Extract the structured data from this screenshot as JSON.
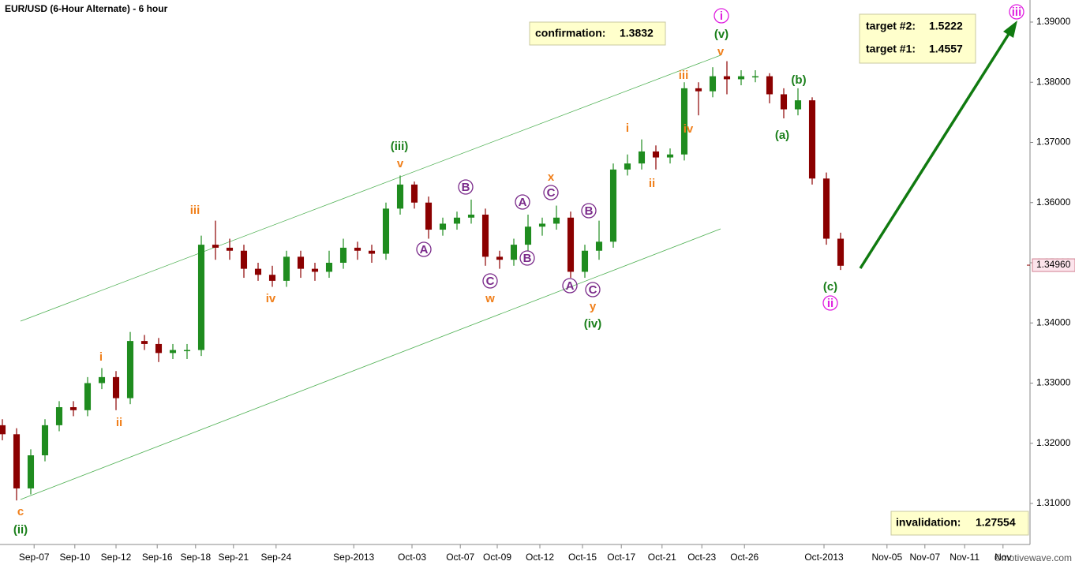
{
  "chart_data": {
    "type": "candlestick",
    "title": "EUR/USD (6-Hour Alternate) - 6 hour",
    "watermark": "©motivewave.com",
    "up_color": "#1f8c1f",
    "down_color": "#8b0000",
    "xlim": [
      -0.5,
      217
    ],
    "ylim": [
      1.30318,
      1.39367
    ],
    "yticks": [
      {
        "value": 1.39,
        "label": "1.39000"
      },
      {
        "value": 1.38,
        "label": "1.38000"
      },
      {
        "value": 1.37,
        "label": "1.37000"
      },
      {
        "value": 1.36,
        "label": "1.36000"
      },
      {
        "value": 1.35,
        "label": "1.35000"
      },
      {
        "value": 1.34,
        "label": "1.34000"
      },
      {
        "value": 1.33,
        "label": "1.33000"
      },
      {
        "value": 1.32,
        "label": "1.32000"
      },
      {
        "value": 1.31,
        "label": "1.31000"
      }
    ],
    "last_price": {
      "value": 1.3496,
      "label": "1.34960"
    },
    "xticks": [
      {
        "value": 6.7,
        "label": "Sep-07"
      },
      {
        "value": 15.3,
        "label": "Sep-10"
      },
      {
        "value": 24,
        "label": "Sep-12"
      },
      {
        "value": 32.7,
        "label": "Sep-16"
      },
      {
        "value": 40.8,
        "label": "Sep-18"
      },
      {
        "value": 48.8,
        "label": "Sep-21"
      },
      {
        "value": 57.8,
        "label": "Sep-24"
      },
      {
        "value": 74.2,
        "label": "Sep-2013"
      },
      {
        "value": 86.5,
        "label": "Oct-03"
      },
      {
        "value": 96.7,
        "label": "Oct-07"
      },
      {
        "value": 104.5,
        "label": "Oct-09"
      },
      {
        "value": 113.5,
        "label": "Oct-12"
      },
      {
        "value": 122.5,
        "label": "Oct-15"
      },
      {
        "value": 130.7,
        "label": "Oct-17"
      },
      {
        "value": 139.3,
        "label": "Oct-21"
      },
      {
        "value": 147.7,
        "label": "Oct-23"
      },
      {
        "value": 156.7,
        "label": "Oct-26"
      },
      {
        "value": 173.5,
        "label": "Oct-2013"
      },
      {
        "value": 186.8,
        "label": "Nov-05"
      },
      {
        "value": 194.8,
        "label": "Nov-07"
      },
      {
        "value": 203.2,
        "label": "Nov-11"
      },
      {
        "value": 211.3,
        "label": "Nov"
      }
    ],
    "x": [
      0,
      3,
      6,
      9,
      12,
      15,
      18,
      21,
      24,
      27,
      30,
      33,
      36,
      39,
      42,
      45,
      48,
      51,
      54,
      57,
      60,
      63,
      66,
      69,
      72,
      75,
      78,
      81,
      84,
      87,
      90,
      93,
      96,
      99,
      102,
      105,
      108,
      111,
      114,
      117,
      120,
      123,
      126,
      129,
      132,
      135,
      138,
      141,
      144,
      147,
      150,
      153,
      156,
      159,
      162,
      165,
      168,
      171,
      174,
      177
    ],
    "open": [
      1.323,
      1.3215,
      1.3125,
      1.318,
      1.323,
      1.326,
      1.3255,
      1.33,
      1.331,
      1.3275,
      1.337,
      1.3365,
      1.335,
      1.3355,
      1.3355,
      1.353,
      1.3525,
      1.352,
      1.349,
      1.348,
      1.347,
      1.351,
      1.349,
      1.3485,
      1.35,
      1.3525,
      1.352,
      1.3515,
      1.359,
      1.363,
      1.36,
      1.3555,
      1.3565,
      1.3575,
      1.358,
      1.351,
      1.3505,
      1.353,
      1.356,
      1.3565,
      1.3575,
      1.3485,
      1.352,
      1.3535,
      1.3655,
      1.3665,
      1.3685,
      1.3675,
      1.368,
      1.379,
      1.3785,
      1.381,
      1.3805,
      1.381,
      1.381,
      1.378,
      1.3755,
      1.377,
      1.364,
      1.354
    ],
    "high": [
      1.324,
      1.3225,
      1.319,
      1.324,
      1.327,
      1.327,
      1.331,
      1.3325,
      1.332,
      1.3385,
      1.338,
      1.3375,
      1.3365,
      1.3365,
      1.3545,
      1.357,
      1.354,
      1.353,
      1.35,
      1.3495,
      1.352,
      1.352,
      1.35,
      1.352,
      1.354,
      1.3535,
      1.353,
      1.36,
      1.3645,
      1.3635,
      1.361,
      1.3575,
      1.3585,
      1.3605,
      1.359,
      1.352,
      1.354,
      1.358,
      1.3575,
      1.3595,
      1.3585,
      1.353,
      1.357,
      1.3665,
      1.368,
      1.3705,
      1.3695,
      1.369,
      1.38,
      1.38,
      1.3825,
      1.3835,
      1.382,
      1.382,
      1.3815,
      1.379,
      1.379,
      1.3775,
      1.365,
      1.355
    ],
    "low": [
      1.3205,
      1.3105,
      1.3115,
      1.317,
      1.322,
      1.3245,
      1.3245,
      1.329,
      1.3255,
      1.3265,
      1.3355,
      1.3335,
      1.334,
      1.334,
      1.3345,
      1.3505,
      1.3505,
      1.3475,
      1.347,
      1.346,
      1.346,
      1.3475,
      1.347,
      1.3475,
      1.349,
      1.3505,
      1.35,
      1.3505,
      1.358,
      1.359,
      1.354,
      1.3545,
      1.3555,
      1.3565,
      1.3495,
      1.349,
      1.3495,
      1.352,
      1.3545,
      1.3555,
      1.3475,
      1.3475,
      1.3505,
      1.3525,
      1.3645,
      1.3655,
      1.3655,
      1.3665,
      1.367,
      1.3745,
      1.3775,
      1.378,
      1.3795,
      1.38,
      1.3765,
      1.374,
      1.3745,
      1.363,
      1.353,
      1.3488
    ],
    "close": [
      1.3215,
      1.3125,
      1.318,
      1.323,
      1.326,
      1.3255,
      1.33,
      1.331,
      1.3275,
      1.337,
      1.3365,
      1.335,
      1.3355,
      1.3355,
      1.353,
      1.3525,
      1.352,
      1.349,
      1.348,
      1.347,
      1.351,
      1.349,
      1.3485,
      1.35,
      1.3525,
      1.352,
      1.3515,
      1.359,
      1.363,
      1.36,
      1.3555,
      1.3565,
      1.3575,
      1.358,
      1.351,
      1.3505,
      1.353,
      1.356,
      1.3565,
      1.3575,
      1.3485,
      1.352,
      1.3535,
      1.3655,
      1.3665,
      1.3685,
      1.3675,
      1.368,
      1.379,
      1.3785,
      1.381,
      1.3805,
      1.381,
      1.381,
      1.378,
      1.3755,
      1.377,
      1.364,
      1.354,
      1.3495
    ],
    "wave_labels": [
      {
        "text": "c",
        "color": "#f07f1a"
      },
      {
        "text": "(ii)",
        "color": "#1a7f1a"
      },
      {
        "text": "i",
        "color": "#f07f1a"
      },
      {
        "text": "ii",
        "color": "#f07f1a"
      },
      {
        "text": "iii",
        "color": "#f07f1a"
      },
      {
        "text": "iv",
        "color": "#f07f1a"
      },
      {
        "text": "v",
        "color": "#f07f1a"
      },
      {
        "text": "(iii)",
        "color": "#1a7f1a"
      },
      {
        "text": "A",
        "color": "#7a2a8a",
        "circled": true
      },
      {
        "text": "B",
        "color": "#7a2a8a",
        "circled": true
      },
      {
        "text": "C",
        "color": "#7a2a8a",
        "circled": true
      },
      {
        "text": "w",
        "color": "#f07f1a"
      },
      {
        "text": "A",
        "color": "#7a2a8a",
        "circled": true
      },
      {
        "text": "B",
        "color": "#7a2a8a",
        "circled": true
      },
      {
        "text": "x",
        "color": "#f07f1a"
      },
      {
        "text": "C",
        "color": "#7a2a8a",
        "circled": true
      },
      {
        "text": "A",
        "color": "#7a2a8a",
        "circled": true
      },
      {
        "text": "B",
        "color": "#7a2a8a",
        "circled": true
      },
      {
        "text": "C",
        "color": "#7a2a8a",
        "circled": true
      },
      {
        "text": "y",
        "color": "#f07f1a"
      },
      {
        "text": "(iv)",
        "color": "#1a7f1a"
      },
      {
        "text": "i",
        "color": "#f07f1a"
      },
      {
        "text": "ii",
        "color": "#f07f1a"
      },
      {
        "text": "iii",
        "color": "#f07f1a"
      },
      {
        "text": "iv",
        "color": "#f07f1a"
      },
      {
        "text": "v",
        "color": "#f07f1a"
      },
      {
        "text": "(v)",
        "color": "#1a7f1a"
      },
      {
        "text": "i",
        "color": "#e020e0",
        "circled": true
      },
      {
        "text": "(a)",
        "color": "#1a7f1a"
      },
      {
        "text": "(b)",
        "color": "#1a7f1a"
      },
      {
        "text": "(c)",
        "color": "#1a7f1a"
      },
      {
        "text": "ii",
        "color": "#e020e0",
        "circled": true
      },
      {
        "text": "iii",
        "color": "#e020e0",
        "circled": true
      }
    ],
    "notes": {
      "confirmation": {
        "label": "confirmation:",
        "value": "1.3832"
      },
      "target_2": {
        "label": "target #2:",
        "value": "1.5222"
      },
      "target_1": {
        "label": "target #1:",
        "value": "1.4557"
      },
      "invalidation": {
        "label": "invalidation:",
        "value": "1.27554"
      }
    }
  }
}
